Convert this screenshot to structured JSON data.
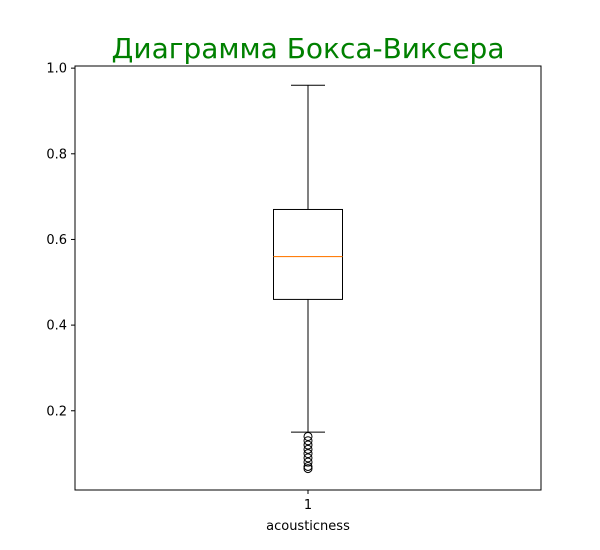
{
  "chart_data": {
    "type": "boxplot",
    "title": "Диаграмма Бокса-Виксера",
    "title_color": "#008000",
    "xlabel": "acousticness",
    "ylabel": "",
    "categories": [
      "1"
    ],
    "ylim": [
      0.015,
      1.005
    ],
    "yticks": [
      0.2,
      0.4,
      0.6,
      0.8,
      1.0
    ],
    "ytick_labels": [
      "0.2",
      "0.4",
      "0.6",
      "0.8",
      "1.0"
    ],
    "grid": false,
    "box_color": "#000000",
    "median_color": "#ff7f0e",
    "boxes": [
      {
        "category": "1",
        "whisker_low": 0.15,
        "q1": 0.46,
        "median": 0.56,
        "q3": 0.67,
        "whisker_high": 0.96,
        "outliers": [
          0.14,
          0.13,
          0.12,
          0.11,
          0.1,
          0.09,
          0.08,
          0.07,
          0.065
        ]
      }
    ]
  }
}
